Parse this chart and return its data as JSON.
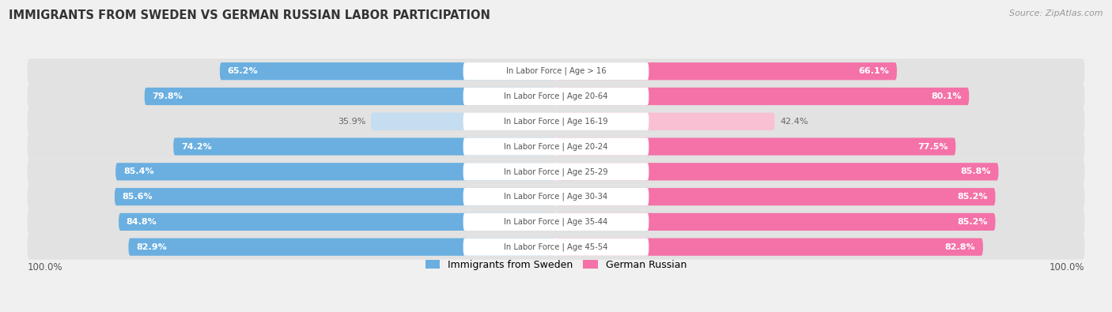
{
  "title": "IMMIGRANTS FROM SWEDEN VS GERMAN RUSSIAN LABOR PARTICIPATION",
  "source": "Source: ZipAtlas.com",
  "categories": [
    "In Labor Force | Age > 16",
    "In Labor Force | Age 20-64",
    "In Labor Force | Age 16-19",
    "In Labor Force | Age 20-24",
    "In Labor Force | Age 25-29",
    "In Labor Force | Age 30-34",
    "In Labor Force | Age 35-44",
    "In Labor Force | Age 45-54"
  ],
  "sweden_values": [
    65.2,
    79.8,
    35.9,
    74.2,
    85.4,
    85.6,
    84.8,
    82.9
  ],
  "german_values": [
    66.1,
    80.1,
    42.4,
    77.5,
    85.8,
    85.2,
    85.2,
    82.8
  ],
  "sweden_color_strong": "#6aafe0",
  "sweden_color_light": "#c5ddf0",
  "german_color_strong": "#f472a8",
  "german_color_light": "#f9c0d4",
  "label_color_white": "#ffffff",
  "label_color_dark": "#666666",
  "center_label_color": "#555555",
  "background_color": "#f0f0f0",
  "row_bg_color": "#e2e2e2",
  "legend_sweden": "Immigrants from Sweden",
  "legend_german": "German Russian",
  "threshold": 50.0,
  "max_value": 100.0,
  "bottom_label": "100.0%"
}
